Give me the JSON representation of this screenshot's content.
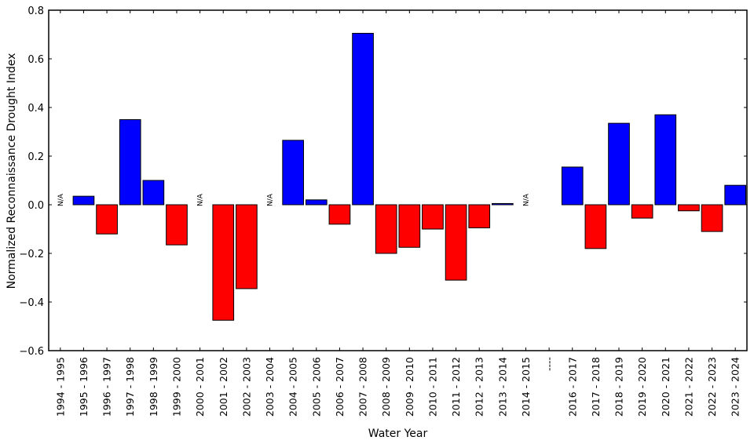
{
  "chart_data": {
    "type": "bar",
    "title": "",
    "xlabel": "Water Year",
    "ylabel": "Normalized Reconnaissance Drought Index",
    "ylim": [
      -0.6,
      0.8
    ],
    "yticks": [
      -0.6,
      -0.4,
      -0.2,
      0.0,
      0.2,
      0.4,
      0.6,
      0.8
    ],
    "ytick_labels": [
      "−0.6",
      "−0.4",
      "−0.2",
      "0.0",
      "0.2",
      "0.4",
      "0.6",
      "0.8"
    ],
    "grid": false,
    "legend": null,
    "colors": {
      "positive": "#0000ff",
      "negative": "#ff0000",
      "edge": "#000000"
    },
    "na_label": "N/A",
    "categories": [
      "1994 - 1995",
      "1995 - 1996",
      "1996 - 1997",
      "1997 - 1998",
      "1998 - 1999",
      "1999 - 2000",
      "2000 - 2001",
      "2001 - 2002",
      "2002 - 2003",
      "2003 - 2004",
      "2004 - 2005",
      "2005 - 2006",
      "2006 - 2007",
      "2007 - 2008",
      "2008 - 2009",
      "2009 - 2010",
      "2010 - 2011",
      "2011 - 2012",
      "2012 - 2013",
      "2013 - 2014",
      "2014 - 2015",
      "----",
      "2016 - 2017",
      "2017 - 2018",
      "2018 - 2019",
      "2019 - 2020",
      "2020 - 2021",
      "2021 - 2022",
      "2022 - 2023",
      "2023 - 2024"
    ],
    "values": [
      null,
      0.035,
      -0.12,
      0.35,
      0.1,
      -0.165,
      null,
      -0.475,
      -0.345,
      null,
      0.265,
      0.02,
      -0.08,
      0.705,
      -0.2,
      -0.175,
      -0.1,
      -0.31,
      -0.095,
      0.005,
      null,
      null,
      0.155,
      -0.18,
      0.335,
      -0.055,
      0.37,
      -0.025,
      -0.11,
      0.08
    ]
  }
}
